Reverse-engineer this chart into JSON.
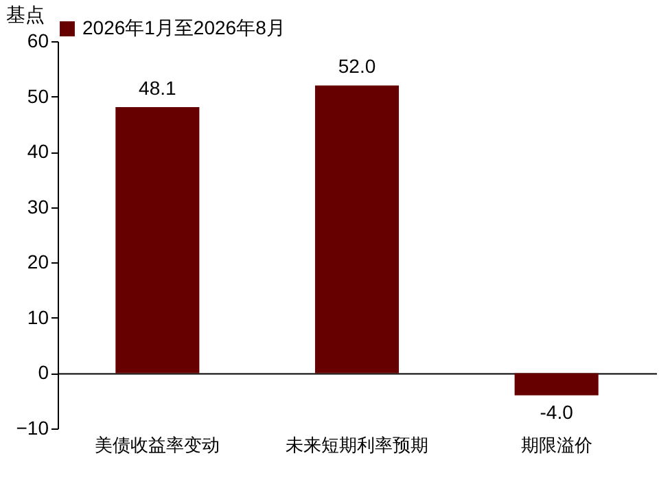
{
  "chart_data": {
    "type": "bar",
    "ylabel": "基点",
    "categories": [
      "美债收益率变动",
      "未来短期利率预期",
      "期限溢价"
    ],
    "series": [
      {
        "name": "2026年1月至2026年8月",
        "color": "#660000",
        "values": [
          48.1,
          52.0,
          -4.0
        ]
      }
    ],
    "value_labels": [
      "48.1",
      "52.0",
      "-4.0"
    ],
    "ylim": [
      -10,
      60
    ],
    "yticks": [
      -10,
      0,
      10,
      20,
      30,
      40,
      50,
      60
    ],
    "legend": "top"
  }
}
